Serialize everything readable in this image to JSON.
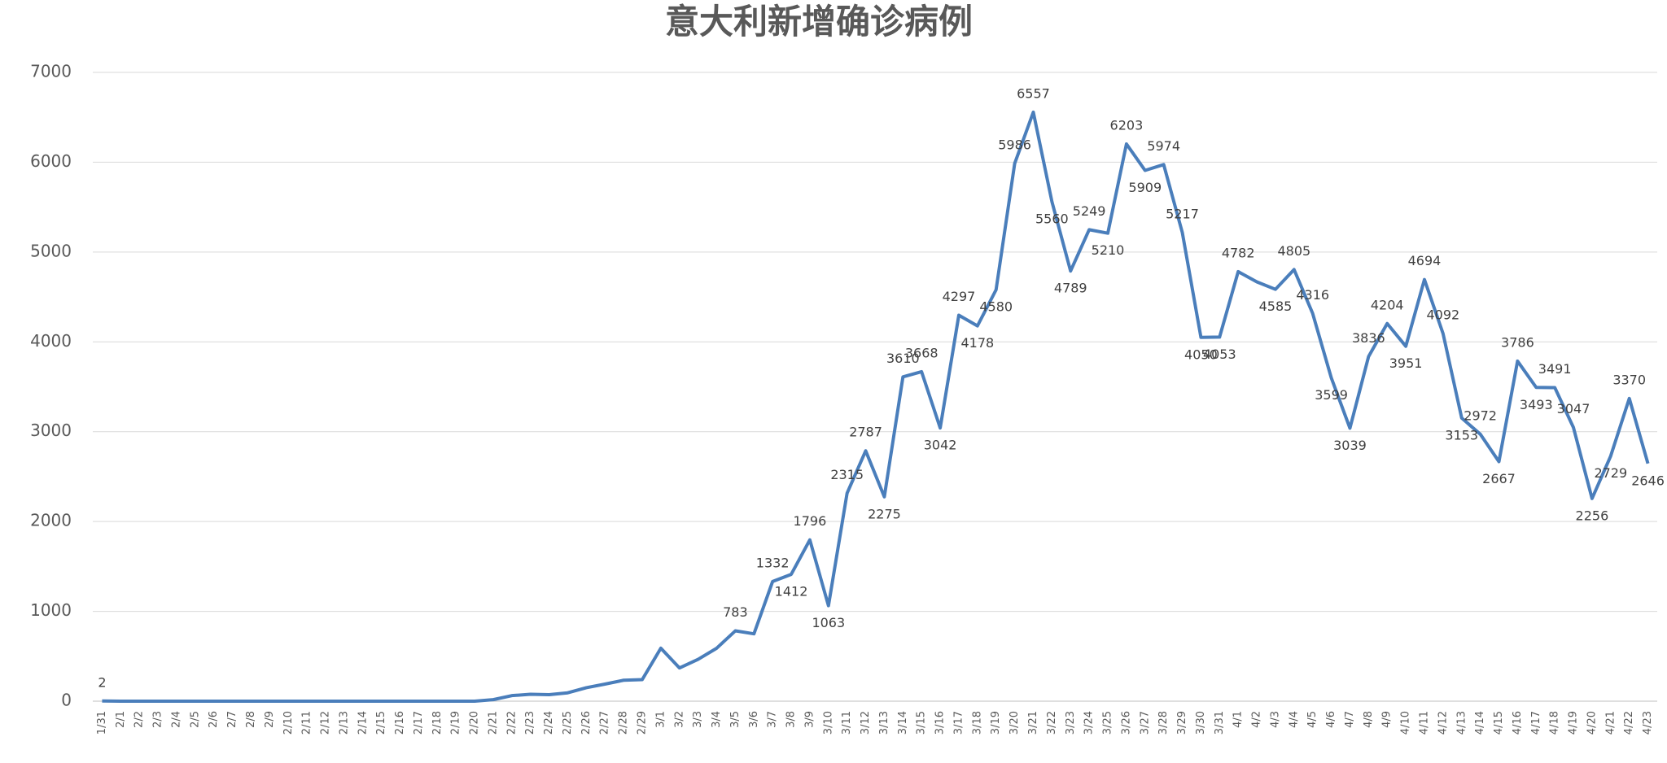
{
  "chart_data": {
    "type": "line",
    "title": "意大利新增确诊病例",
    "categories": [
      "1/31",
      "2/1",
      "2/2",
      "2/3",
      "2/4",
      "2/5",
      "2/6",
      "2/7",
      "2/8",
      "2/9",
      "2/10",
      "2/11",
      "2/12",
      "2/13",
      "2/14",
      "2/15",
      "2/16",
      "2/17",
      "2/18",
      "2/19",
      "2/20",
      "2/21",
      "2/22",
      "2/23",
      "2/24",
      "2/25",
      "2/26",
      "2/27",
      "2/28",
      "2/29",
      "3/1",
      "3/2",
      "3/3",
      "3/4",
      "3/5",
      "3/6",
      "3/7",
      "3/8",
      "3/9",
      "3/10",
      "3/11",
      "3/12",
      "3/13",
      "3/14",
      "3/15",
      "3/16",
      "3/17",
      "3/18",
      "3/19",
      "3/20",
      "3/21",
      "3/22",
      "3/23",
      "3/24",
      "3/25",
      "3/26",
      "3/27",
      "3/28",
      "3/29",
      "3/30",
      "3/31",
      "4/1",
      "4/2",
      "4/3",
      "4/4",
      "4/5",
      "4/6",
      "4/7",
      "4/8",
      "4/9",
      "4/10",
      "4/11",
      "4/12",
      "4/13",
      "4/14",
      "4/15",
      "4/16",
      "4/17",
      "4/18",
      "4/19",
      "4/20",
      "4/21",
      "4/22",
      "4/23"
    ],
    "series": [
      {
        "name": "新增确诊病例",
        "color": "#4a7ebb",
        "values": [
          2,
          0,
          0,
          0,
          0,
          0,
          0,
          0,
          0,
          0,
          0,
          0,
          0,
          0,
          0,
          0,
          0,
          0,
          0,
          0,
          0,
          17,
          62,
          77,
          72,
          93,
          150,
          190,
          233,
          240,
          590,
          370,
          466,
          590,
          783,
          750,
          1332,
          1412,
          1796,
          1063,
          2315,
          2787,
          2275,
          3610,
          3668,
          3042,
          4297,
          4178,
          4580,
          5986,
          6557,
          5560,
          4789,
          5249,
          5210,
          6203,
          5909,
          5974,
          5217,
          4050,
          4053,
          4782,
          4668,
          4585,
          4805,
          4316,
          3599,
          3039,
          3836,
          4204,
          3951,
          4694,
          4092,
          3153,
          2972,
          2667,
          3786,
          3493,
          3491,
          3047,
          2256,
          2729,
          3370,
          2646
        ],
        "value_labels": [
          "2",
          null,
          null,
          null,
          null,
          null,
          null,
          null,
          null,
          null,
          null,
          null,
          null,
          null,
          null,
          null,
          null,
          null,
          null,
          null,
          null,
          null,
          null,
          null,
          null,
          null,
          null,
          null,
          null,
          null,
          null,
          null,
          null,
          null,
          "783",
          null,
          "1332",
          "1412",
          "1796",
          "1063",
          "2315",
          "2787",
          "2275",
          "3610",
          "3668",
          "3042",
          "4297",
          "4178",
          "4580",
          "5986",
          "6557",
          "5560",
          "4789",
          "5249",
          "5210",
          "6203",
          "5909",
          "5974",
          "5217",
          "4050",
          "4053",
          "4782",
          null,
          "4585",
          "4805",
          "4316",
          "3599",
          "3039",
          "3836",
          "4204",
          "3951",
          "4694",
          "4092",
          "3153",
          "2972",
          "2667",
          "3786",
          "3493",
          "3491",
          "3047",
          "2256",
          "2729",
          "3370",
          "2646"
        ]
      }
    ],
    "ylim": [
      0,
      7000
    ],
    "yticks": [
      0,
      1000,
      2000,
      3000,
      4000,
      5000,
      6000,
      7000
    ],
    "grid": true
  }
}
